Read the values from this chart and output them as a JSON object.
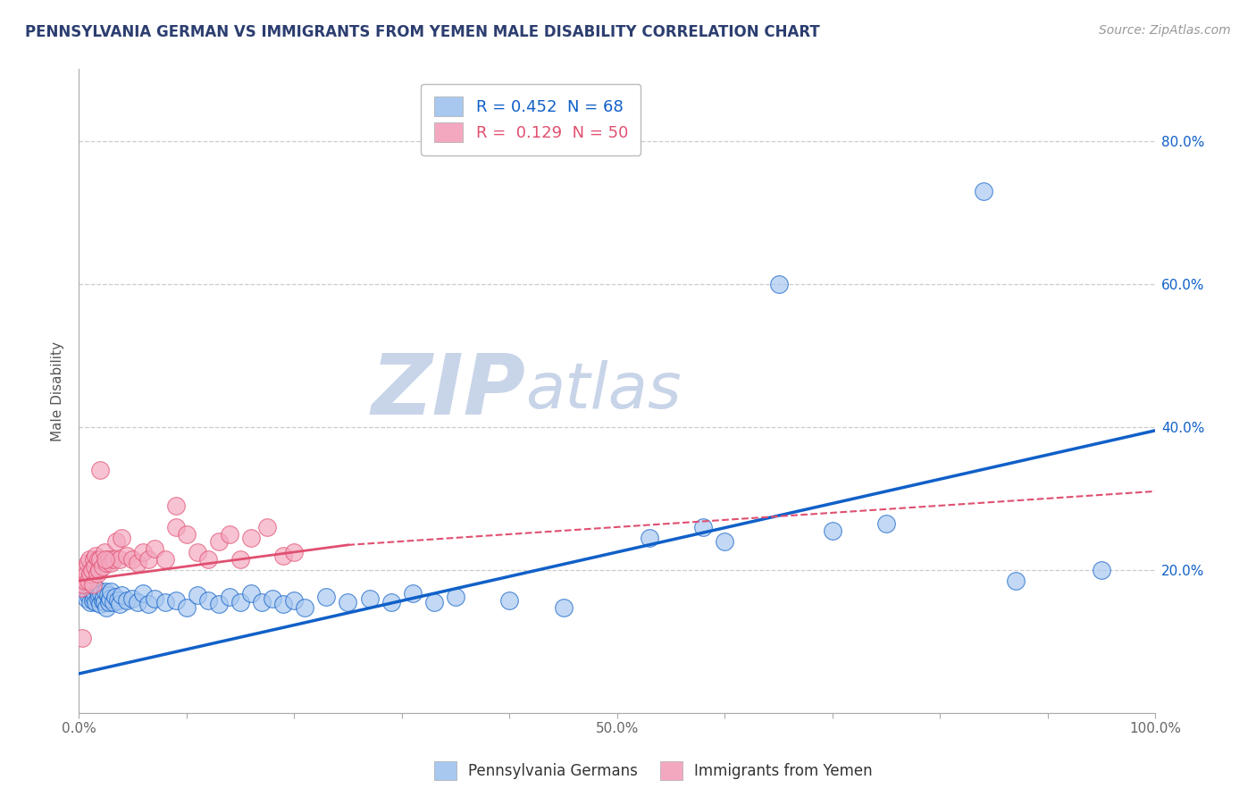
{
  "title": "PENNSYLVANIA GERMAN VS IMMIGRANTS FROM YEMEN MALE DISABILITY CORRELATION CHART",
  "source_text": "Source: ZipAtlas.com",
  "ylabel": "Male Disability",
  "watermark_zip": "ZIP",
  "watermark_atlas": "atlas",
  "xmin": 0.0,
  "xmax": 1.0,
  "ymin": 0.0,
  "ymax": 0.9,
  "blue_R": "0.452",
  "blue_N": "68",
  "pink_R": "0.129",
  "pink_N": "50",
  "blue_color": "#A8C8F0",
  "pink_color": "#F4A8C0",
  "blue_line_color": "#1060C8",
  "pink_line_color": "#E05070",
  "blue_scatter": [
    [
      0.003,
      0.17
    ],
    [
      0.005,
      0.175
    ],
    [
      0.007,
      0.16
    ],
    [
      0.009,
      0.165
    ],
    [
      0.01,
      0.18
    ],
    [
      0.011,
      0.155
    ],
    [
      0.012,
      0.17
    ],
    [
      0.013,
      0.158
    ],
    [
      0.014,
      0.162
    ],
    [
      0.015,
      0.168
    ],
    [
      0.016,
      0.155
    ],
    [
      0.017,
      0.172
    ],
    [
      0.018,
      0.16
    ],
    [
      0.019,
      0.165
    ],
    [
      0.02,
      0.152
    ],
    [
      0.021,
      0.168
    ],
    [
      0.022,
      0.158
    ],
    [
      0.023,
      0.162
    ],
    [
      0.024,
      0.155
    ],
    [
      0.025,
      0.17
    ],
    [
      0.026,
      0.148
    ],
    [
      0.027,
      0.165
    ],
    [
      0.028,
      0.155
    ],
    [
      0.029,
      0.16
    ],
    [
      0.03,
      0.17
    ],
    [
      0.032,
      0.155
    ],
    [
      0.034,
      0.162
    ],
    [
      0.036,
      0.158
    ],
    [
      0.038,
      0.152
    ],
    [
      0.04,
      0.165
    ],
    [
      0.045,
      0.158
    ],
    [
      0.05,
      0.16
    ],
    [
      0.055,
      0.155
    ],
    [
      0.06,
      0.168
    ],
    [
      0.065,
      0.152
    ],
    [
      0.07,
      0.16
    ],
    [
      0.08,
      0.155
    ],
    [
      0.09,
      0.158
    ],
    [
      0.1,
      0.148
    ],
    [
      0.11,
      0.165
    ],
    [
      0.12,
      0.158
    ],
    [
      0.13,
      0.152
    ],
    [
      0.14,
      0.162
    ],
    [
      0.15,
      0.155
    ],
    [
      0.16,
      0.168
    ],
    [
      0.17,
      0.155
    ],
    [
      0.18,
      0.16
    ],
    [
      0.19,
      0.152
    ],
    [
      0.2,
      0.158
    ],
    [
      0.21,
      0.148
    ],
    [
      0.23,
      0.162
    ],
    [
      0.25,
      0.155
    ],
    [
      0.27,
      0.16
    ],
    [
      0.29,
      0.155
    ],
    [
      0.31,
      0.168
    ],
    [
      0.33,
      0.155
    ],
    [
      0.35,
      0.162
    ],
    [
      0.4,
      0.158
    ],
    [
      0.45,
      0.148
    ],
    [
      0.53,
      0.245
    ],
    [
      0.58,
      0.26
    ],
    [
      0.6,
      0.24
    ],
    [
      0.65,
      0.6
    ],
    [
      0.7,
      0.255
    ],
    [
      0.75,
      0.265
    ],
    [
      0.84,
      0.73
    ],
    [
      0.87,
      0.185
    ],
    [
      0.95,
      0.2
    ]
  ],
  "pink_scatter": [
    [
      0.002,
      0.175
    ],
    [
      0.003,
      0.19
    ],
    [
      0.004,
      0.18
    ],
    [
      0.005,
      0.2
    ],
    [
      0.006,
      0.185
    ],
    [
      0.007,
      0.195
    ],
    [
      0.008,
      0.21
    ],
    [
      0.009,
      0.185
    ],
    [
      0.01,
      0.215
    ],
    [
      0.011,
      0.195
    ],
    [
      0.012,
      0.2
    ],
    [
      0.013,
      0.18
    ],
    [
      0.014,
      0.215
    ],
    [
      0.015,
      0.205
    ],
    [
      0.016,
      0.22
    ],
    [
      0.017,
      0.195
    ],
    [
      0.018,
      0.215
    ],
    [
      0.019,
      0.2
    ],
    [
      0.02,
      0.215
    ],
    [
      0.022,
      0.205
    ],
    [
      0.024,
      0.225
    ],
    [
      0.026,
      0.21
    ],
    [
      0.028,
      0.215
    ],
    [
      0.03,
      0.21
    ],
    [
      0.032,
      0.215
    ],
    [
      0.035,
      0.24
    ],
    [
      0.038,
      0.215
    ],
    [
      0.04,
      0.245
    ],
    [
      0.045,
      0.22
    ],
    [
      0.05,
      0.215
    ],
    [
      0.055,
      0.21
    ],
    [
      0.06,
      0.225
    ],
    [
      0.065,
      0.215
    ],
    [
      0.07,
      0.23
    ],
    [
      0.08,
      0.215
    ],
    [
      0.09,
      0.26
    ],
    [
      0.1,
      0.25
    ],
    [
      0.11,
      0.225
    ],
    [
      0.12,
      0.215
    ],
    [
      0.13,
      0.24
    ],
    [
      0.14,
      0.25
    ],
    [
      0.15,
      0.215
    ],
    [
      0.16,
      0.245
    ],
    [
      0.175,
      0.26
    ],
    [
      0.19,
      0.22
    ],
    [
      0.2,
      0.225
    ],
    [
      0.02,
      0.34
    ],
    [
      0.003,
      0.105
    ],
    [
      0.025,
      0.215
    ],
    [
      0.09,
      0.29
    ]
  ],
  "blue_line": [
    [
      0.0,
      0.055
    ],
    [
      1.0,
      0.395
    ]
  ],
  "pink_line_solid": [
    [
      0.0,
      0.185
    ],
    [
      0.25,
      0.235
    ]
  ],
  "pink_line_dashed": [
    [
      0.25,
      0.235
    ],
    [
      1.0,
      0.31
    ]
  ],
  "xtick_vals": [
    0.0,
    0.1,
    0.2,
    0.3,
    0.4,
    0.5,
    0.6,
    0.7,
    0.8,
    0.9,
    1.0
  ],
  "xtick_labels": [
    "0.0%",
    "",
    "",
    "",
    "",
    "50.0%",
    "",
    "",
    "",
    "",
    "100.0%"
  ],
  "ytick_vals": [
    0.0,
    0.2,
    0.4,
    0.6,
    0.8
  ],
  "right_ytick_labels": [
    "",
    "20.0%",
    "40.0%",
    "60.0%",
    "80.0%"
  ],
  "bg_color": "#FFFFFF",
  "grid_color": "#CCCCCC",
  "title_color": "#2C3E70",
  "watermark_color_zip": "#C8D4E8",
  "watermark_color_atlas": "#C8D4E8",
  "legend_box_color": "#FFFFFF",
  "legend_border_color": "#BBBBBB",
  "blue_label_color": "#1060C8",
  "pink_label_color": "#E05070"
}
